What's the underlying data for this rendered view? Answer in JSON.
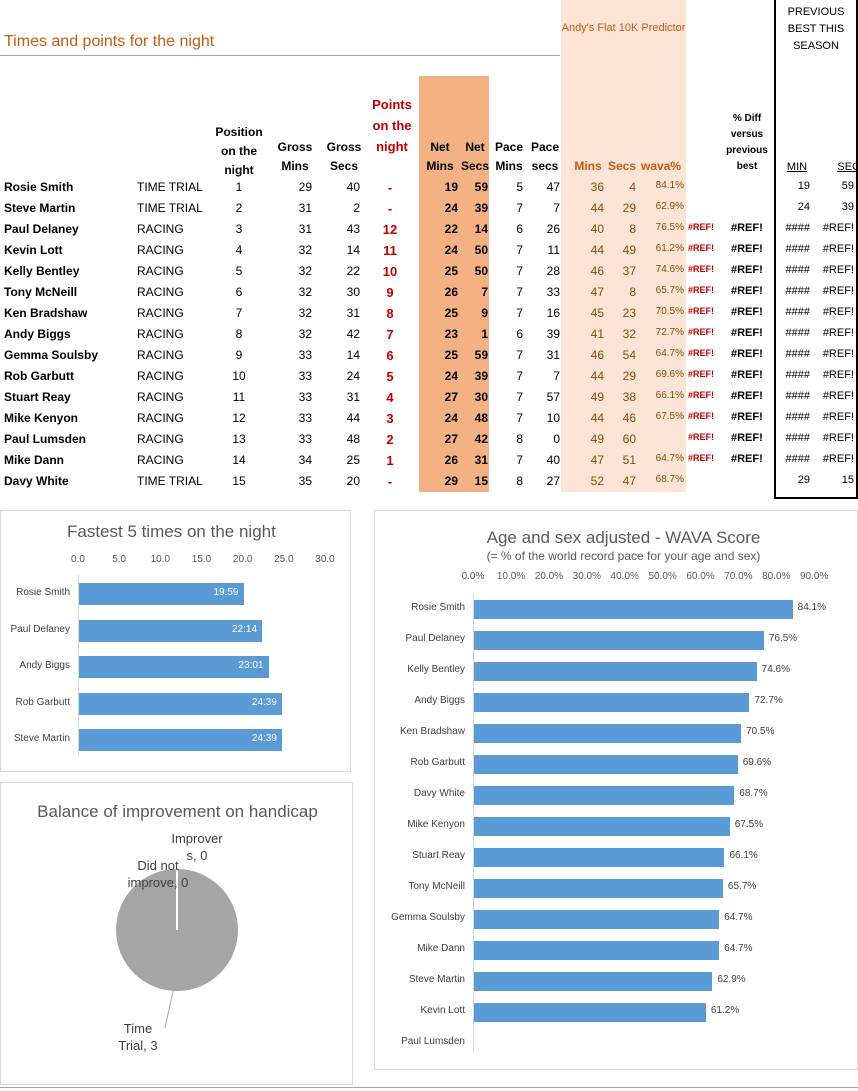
{
  "title": "Times and points for the night",
  "predictor_title": "Andy's Flat 10K Predictor",
  "previous_best_title": "PREVIOUS BEST THIS SEASON",
  "headers": {
    "position": "Position on the night",
    "gross_mins": "Gross Mins",
    "gross_secs": "Gross Secs",
    "points": "Points on the night",
    "net_mins": "Net Mins",
    "net_secs": "Net Secs",
    "pace_mins": "Pace Mins",
    "pace_secs": "Pace secs",
    "pred_mins": "Mins",
    "pred_secs": "Secs",
    "wava": "wava%",
    "diff": "% Diff versus previous best",
    "best_min": "MIN",
    "best_sec": "SEC"
  },
  "rows": [
    {
      "name": "Rosie Smith",
      "type": "TIME TRIAL",
      "pos": "1",
      "gm": "29",
      "gs": "40",
      "pts": "-",
      "nm": "19",
      "ns": "59",
      "pm": "5",
      "ps": "47",
      "pmin": "36",
      "psec": "4",
      "wava": "84.1%",
      "ref1": "",
      "ref2": "",
      "bmin": "19",
      "bsec": "59"
    },
    {
      "name": "Steve Martin",
      "type": "TIME TRIAL",
      "pos": "2",
      "gm": "31",
      "gs": "2",
      "pts": "-",
      "nm": "24",
      "ns": "39",
      "pm": "7",
      "ps": "7",
      "pmin": "44",
      "psec": "29",
      "wava": "62.9%",
      "ref1": "",
      "ref2": "",
      "bmin": "24",
      "bsec": "39"
    },
    {
      "name": "Paul Delaney",
      "type": "RACING",
      "pos": "3",
      "gm": "31",
      "gs": "43",
      "pts": "12",
      "nm": "22",
      "ns": "14",
      "pm": "6",
      "ps": "26",
      "pmin": "40",
      "psec": "8",
      "wava": "76.5%",
      "ref1": "#REF!",
      "ref2": "#REF!",
      "bmin": "####",
      "bsec": "#REF!"
    },
    {
      "name": "Kevin Lott",
      "type": "RACING",
      "pos": "4",
      "gm": "32",
      "gs": "14",
      "pts": "11",
      "nm": "24",
      "ns": "50",
      "pm": "7",
      "ps": "11",
      "pmin": "44",
      "psec": "49",
      "wava": "61.2%",
      "ref1": "#REF!",
      "ref2": "#REF!",
      "bmin": "####",
      "bsec": "#REF!"
    },
    {
      "name": "Kelly Bentley",
      "type": "RACING",
      "pos": "5",
      "gm": "32",
      "gs": "22",
      "pts": "10",
      "nm": "25",
      "ns": "50",
      "pm": "7",
      "ps": "28",
      "pmin": "46",
      "psec": "37",
      "wava": "74.6%",
      "ref1": "#REF!",
      "ref2": "#REF!",
      "bmin": "####",
      "bsec": "#REF!"
    },
    {
      "name": "Tony McNeill",
      "type": "RACING",
      "pos": "6",
      "gm": "32",
      "gs": "30",
      "pts": "9",
      "nm": "26",
      "ns": "7",
      "pm": "7",
      "ps": "33",
      "pmin": "47",
      "psec": "8",
      "wava": "65.7%",
      "ref1": "#REF!",
      "ref2": "#REF!",
      "bmin": "####",
      "bsec": "#REF!"
    },
    {
      "name": "Ken Bradshaw",
      "type": "RACING",
      "pos": "7",
      "gm": "32",
      "gs": "31",
      "pts": "8",
      "nm": "25",
      "ns": "9",
      "pm": "7",
      "ps": "16",
      "pmin": "45",
      "psec": "23",
      "wava": "70.5%",
      "ref1": "#REF!",
      "ref2": "#REF!",
      "bmin": "####",
      "bsec": "#REF!"
    },
    {
      "name": "Andy Biggs",
      "type": "RACING",
      "pos": "8",
      "gm": "32",
      "gs": "42",
      "pts": "7",
      "nm": "23",
      "ns": "1",
      "pm": "6",
      "ps": "39",
      "pmin": "41",
      "psec": "32",
      "wava": "72.7%",
      "ref1": "#REF!",
      "ref2": "#REF!",
      "bmin": "####",
      "bsec": "#REF!"
    },
    {
      "name": "Gemma Soulsby",
      "type": "RACING",
      "pos": "9",
      "gm": "33",
      "gs": "14",
      "pts": "6",
      "nm": "25",
      "ns": "59",
      "pm": "7",
      "ps": "31",
      "pmin": "46",
      "psec": "54",
      "wava": "64.7%",
      "ref1": "#REF!",
      "ref2": "#REF!",
      "bmin": "####",
      "bsec": "#REF!"
    },
    {
      "name": "Rob Garbutt",
      "type": "RACING",
      "pos": "10",
      "gm": "33",
      "gs": "24",
      "pts": "5",
      "nm": "24",
      "ns": "39",
      "pm": "7",
      "ps": "7",
      "pmin": "44",
      "psec": "29",
      "wava": "69.6%",
      "ref1": "#REF!",
      "ref2": "#REF!",
      "bmin": "####",
      "bsec": "#REF!"
    },
    {
      "name": "Stuart Reay",
      "type": "RACING",
      "pos": "11",
      "gm": "33",
      "gs": "31",
      "pts": "4",
      "nm": "27",
      "ns": "30",
      "pm": "7",
      "ps": "57",
      "pmin": "49",
      "psec": "38",
      "wava": "66.1%",
      "ref1": "#REF!",
      "ref2": "#REF!",
      "bmin": "####",
      "bsec": "#REF!"
    },
    {
      "name": "Mike Kenyon",
      "type": "RACING",
      "pos": "12",
      "gm": "33",
      "gs": "44",
      "pts": "3",
      "nm": "24",
      "ns": "48",
      "pm": "7",
      "ps": "10",
      "pmin": "44",
      "psec": "46",
      "wava": "67.5%",
      "ref1": "#REF!",
      "ref2": "#REF!",
      "bmin": "####",
      "bsec": "#REF!"
    },
    {
      "name": "Paul Lumsden",
      "type": "RACING",
      "pos": "13",
      "gm": "33",
      "gs": "48",
      "pts": "2",
      "nm": "27",
      "ns": "42",
      "pm": "8",
      "ps": "0",
      "pmin": "49",
      "psec": "60",
      "wava": "",
      "ref1": "#REF!",
      "ref2": "#REF!",
      "bmin": "####",
      "bsec": "#REF!"
    },
    {
      "name": "Mike Dann",
      "type": "RACING",
      "pos": "14",
      "gm": "34",
      "gs": "25",
      "pts": "1",
      "nm": "26",
      "ns": "31",
      "pm": "7",
      "ps": "40",
      "pmin": "47",
      "psec": "51",
      "wava": "64.7%",
      "ref1": "#REF!",
      "ref2": "#REF!",
      "bmin": "####",
      "bsec": "#REF!"
    },
    {
      "name": "Davy White",
      "type": "TIME TRIAL",
      "pos": "15",
      "gm": "35",
      "gs": "20",
      "pts": "-",
      "nm": "29",
      "ns": "15",
      "pm": "8",
      "ps": "27",
      "pmin": "52",
      "psec": "47",
      "wava": "68.7%",
      "ref1": "",
      "ref2": "",
      "bmin": "29",
      "bsec": "15"
    }
  ],
  "colors": {
    "bar": "#5b9bd5",
    "pie": "#a5a5a5",
    "accent": "#c55a11",
    "points": "#c00000"
  },
  "chart_data": [
    {
      "type": "bar",
      "orientation": "horizontal",
      "title": "Fastest 5 times on the night",
      "categories": [
        "Rosie Smith",
        "Paul Delaney",
        "Andy Biggs",
        "Rob Garbutt",
        "Steve Martin"
      ],
      "values": [
        19.98,
        22.23,
        23.02,
        24.65,
        24.65
      ],
      "data_labels": [
        "19:59",
        "22:14",
        "23:01",
        "24:39",
        "24:39"
      ],
      "ticks": [
        "0.0",
        "5.0",
        "10.0",
        "15.0",
        "20.0",
        "25.0",
        "30.0"
      ],
      "xlim": [
        0,
        30
      ],
      "grid": false
    },
    {
      "type": "pie",
      "title": "Balance of improvement on handicap",
      "slices": [
        {
          "label": "Improvers, 0",
          "label_text": "Improver s, 0",
          "value": 0
        },
        {
          "label": "Did not improve, 0",
          "label_text": "Did not improve, 0",
          "value": 0
        },
        {
          "label": "Time Trial, 3",
          "label_text": "Time Trial, 3",
          "value": 3
        }
      ]
    },
    {
      "type": "bar",
      "orientation": "horizontal",
      "title": "Age and sex adjusted - WAVA Score",
      "subtitle": "(= % of the world record pace for your age and sex)",
      "categories": [
        "Rosie Smith",
        "Paul Delaney",
        "Kelly Bentley",
        "Andy Biggs",
        "Ken Bradshaw",
        "Rob Garbutt",
        "Davy White",
        "Mike Kenyon",
        "Stuart Reay",
        "Tony McNeill",
        "Gemma Soulsby",
        "Mike Dann",
        "Steve Martin",
        "Kevin Lott",
        "Paul Lumsden"
      ],
      "values": [
        84.1,
        76.5,
        74.6,
        72.7,
        70.5,
        69.6,
        68.7,
        67.5,
        66.1,
        65.7,
        64.7,
        64.7,
        62.9,
        61.2,
        null
      ],
      "data_labels": [
        "84.1%",
        "76.5%",
        "74.6%",
        "72.7%",
        "70.5%",
        "69.6%",
        "68.7%",
        "67.5%",
        "66.1%",
        "65.7%",
        "64.7%",
        "64.7%",
        "62.9%",
        "61.2%",
        ""
      ],
      "ticks": [
        "0.0%",
        "10.0%",
        "20.0%",
        "30.0%",
        "40.0%",
        "50.0%",
        "60.0%",
        "70.0%",
        "80.0%",
        "90.0%"
      ],
      "xlim": [
        0,
        90
      ],
      "grid": false
    }
  ]
}
